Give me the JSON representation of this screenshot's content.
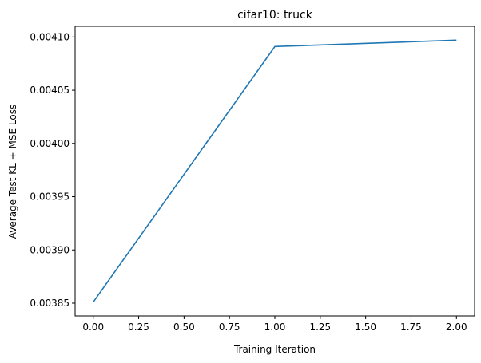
{
  "chart_data": {
    "type": "line",
    "title": "cifar10: truck",
    "xlabel": "Training Iteration",
    "ylabel": "Average Test KL + MSE Loss",
    "x": [
      0,
      1,
      2
    ],
    "series": [
      {
        "values": [
          0.003851,
          0.004091,
          0.004097
        ],
        "color": "#1f77b4"
      }
    ],
    "xlim": [
      -0.1,
      2.1
    ],
    "ylim": [
      0.003838,
      0.00411
    ],
    "xticks": [
      0,
      0.25,
      0.5,
      0.75,
      1.0,
      1.25,
      1.5,
      1.75,
      2.0
    ],
    "xtick_labels": [
      "0.00",
      "0.25",
      "0.50",
      "0.75",
      "1.00",
      "1.25",
      "1.50",
      "1.75",
      "2.00"
    ],
    "yticks": [
      0.00385,
      0.0039,
      0.00395,
      0.004,
      0.00405,
      0.0041
    ],
    "ytick_labels": [
      "0.00385",
      "0.00390",
      "0.00395",
      "0.00400",
      "0.00405",
      "0.00410"
    ],
    "grid": false,
    "legend": "none"
  }
}
